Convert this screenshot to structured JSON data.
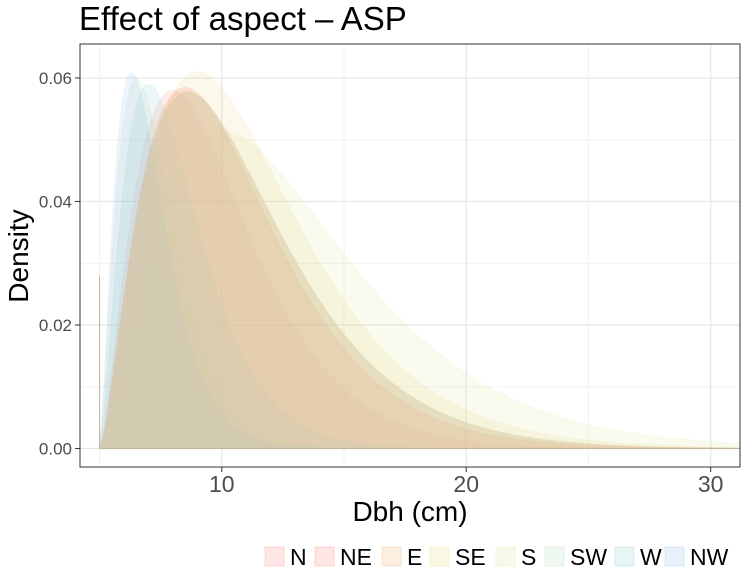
{
  "chart_data": {
    "type": "area",
    "title": "Effect of aspect – ASP",
    "xlabel": "Dbh (cm)",
    "ylabel": "Density",
    "xlim": [
      4.2,
      31.2
    ],
    "ylim": [
      -0.003,
      0.0655
    ],
    "x_ticks": [
      {
        "value": 10,
        "label": "10"
      },
      {
        "value": 20,
        "label": "20"
      },
      {
        "value": 30,
        "label": "30"
      }
    ],
    "y_ticks": [
      {
        "value": 0.0,
        "label": "0.00"
      },
      {
        "value": 0.02,
        "label": "0.02"
      },
      {
        "value": 0.04,
        "label": "0.04"
      },
      {
        "value": 0.06,
        "label": "0.06"
      }
    ],
    "x_minor": [
      5,
      15,
      25
    ],
    "y_minor": [
      0.01,
      0.03,
      0.05
    ],
    "grid": true,
    "legend_position": "bottom",
    "x_start": 5,
    "x_end": 31.2,
    "series": [
      {
        "name": "N",
        "fill": "#f8766d",
        "peak_x": 8.5,
        "peak_y": 0.0585,
        "tail_y": 0.0105
      },
      {
        "name": "NE",
        "fill": "#f8766d",
        "peak_x": 8.0,
        "peak_y": 0.058,
        "tail_y": 0.01
      },
      {
        "name": "E",
        "fill": "#f0a860",
        "peak_x": 8.5,
        "peak_y": 0.0582,
        "tail_y": 0.01
      },
      {
        "name": "SE",
        "fill": "#e8d070",
        "peak_x": 9.0,
        "peak_y": 0.061,
        "tail_y": 0.0102
      },
      {
        "name": "S",
        "fill": "#d8e08a",
        "peak_x": 10.0,
        "peak_y": 0.0515,
        "tail_y": 0.011
      },
      {
        "name": "SW",
        "fill": "#a8d8b0",
        "peak_x": 6.5,
        "peak_y": 0.06,
        "tail_y": 0.0105
      },
      {
        "name": "W",
        "fill": "#80c8c8",
        "peak_x": 7.0,
        "peak_y": 0.059,
        "tail_y": 0.0108
      },
      {
        "name": "NW",
        "fill": "#7fb2e5",
        "peak_x": 6.3,
        "peak_y": 0.061,
        "tail_y": 0.0102
      }
    ],
    "fill_opacity": 0.14
  }
}
